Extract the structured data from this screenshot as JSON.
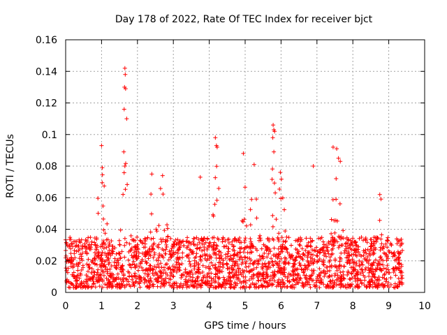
{
  "chart_data": {
    "type": "scatter",
    "title": "Day 178 of 2022, Rate Of TEC Index for receiver bjct",
    "xlabel": "GPS time / hours",
    "ylabel": "ROTI / TECUs",
    "xlim": [
      0,
      10
    ],
    "ylim": [
      0,
      0.16
    ],
    "x_ticks": [
      0,
      1,
      2,
      3,
      4,
      5,
      6,
      7,
      8,
      9,
      10
    ],
    "y_ticks": [
      0,
      0.02,
      0.04,
      0.06,
      0.08,
      0.1,
      0.12,
      0.14,
      0.16
    ],
    "x_tick_labels": [
      "0",
      "1",
      "2",
      "3",
      "4",
      "5",
      "6",
      "7",
      "8",
      "9",
      "10"
    ],
    "y_tick_labels": [
      "0",
      "0.02",
      "0.04",
      "0.06",
      "0.08",
      "0.1",
      "0.12",
      "0.14",
      "0.16"
    ],
    "grid": true,
    "marker": "+",
    "marker_color": "#ff0000",
    "series": [
      {
        "name": "ROTI",
        "x_range": [
          0,
          9.38
        ],
        "baseline_range": [
          0.003,
          0.035
        ],
        "notable_points": [
          {
            "x": 1.0,
            "y": 0.093
          },
          {
            "x": 1.02,
            "y": 0.079
          },
          {
            "x": 1.65,
            "y": 0.142
          },
          {
            "x": 1.66,
            "y": 0.138
          },
          {
            "x": 1.64,
            "y": 0.13
          },
          {
            "x": 1.67,
            "y": 0.129
          },
          {
            "x": 1.63,
            "y": 0.116
          },
          {
            "x": 1.7,
            "y": 0.11
          },
          {
            "x": 1.62,
            "y": 0.089
          },
          {
            "x": 1.65,
            "y": 0.08
          },
          {
            "x": 2.4,
            "y": 0.075
          },
          {
            "x": 2.7,
            "y": 0.074
          },
          {
            "x": 3.75,
            "y": 0.073
          },
          {
            "x": 4.17,
            "y": 0.098
          },
          {
            "x": 4.2,
            "y": 0.093
          },
          {
            "x": 4.22,
            "y": 0.092
          },
          {
            "x": 4.95,
            "y": 0.088
          },
          {
            "x": 5.25,
            "y": 0.081
          },
          {
            "x": 5.78,
            "y": 0.106
          },
          {
            "x": 5.8,
            "y": 0.103
          },
          {
            "x": 5.82,
            "y": 0.102
          },
          {
            "x": 5.77,
            "y": 0.098
          },
          {
            "x": 5.8,
            "y": 0.089
          },
          {
            "x": 5.98,
            "y": 0.076
          },
          {
            "x": 6.9,
            "y": 0.08
          },
          {
            "x": 7.45,
            "y": 0.092
          },
          {
            "x": 7.55,
            "y": 0.091
          },
          {
            "x": 7.6,
            "y": 0.085
          },
          {
            "x": 7.65,
            "y": 0.083
          },
          {
            "x": 8.75,
            "y": 0.062
          }
        ]
      }
    ]
  }
}
